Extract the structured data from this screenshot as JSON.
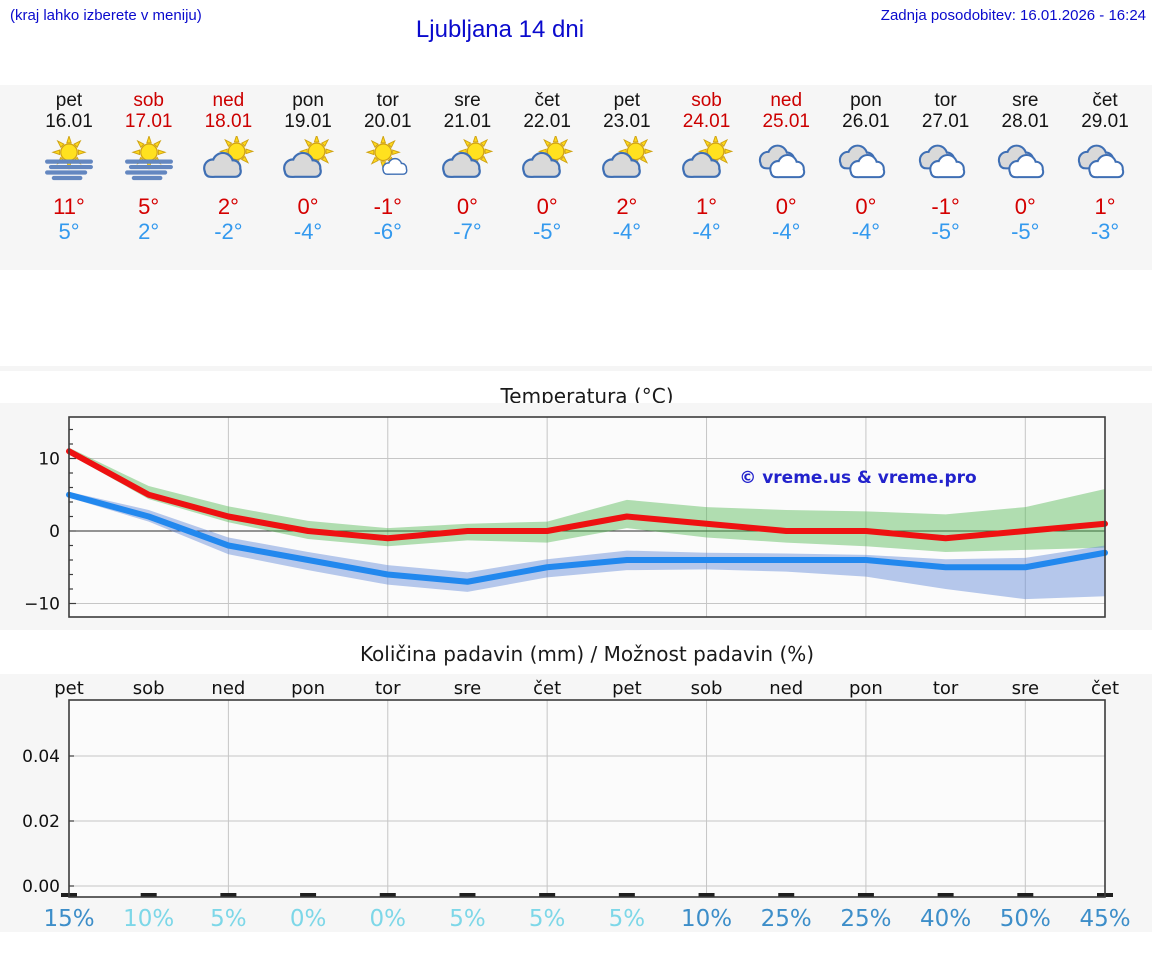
{
  "page": {
    "hint": "(kraj lahko izberete v meniju)",
    "title": "Ljubljana 14 dni",
    "last_update": "Zadnja posodobitev: 16.01.2026 - 16:24"
  },
  "colors": {
    "link_blue": "#0a0acd",
    "weekend_red": "#cc0000",
    "high_temp_red": "#d40000",
    "low_temp_blue": "#3399ee",
    "max_line_red": "#ee1111",
    "min_line_blue": "#2288ee",
    "max_band_green": "rgba(85,185,85,0.45)",
    "min_band_blue": "rgba(95,135,215,0.45)",
    "prob_high_blue": "#3d8ec9",
    "prob_low_cyan": "#7dd7e8"
  },
  "days": [
    {
      "name": "pet",
      "date": "16.01",
      "weekend": false,
      "icon": "fog",
      "high": "11°",
      "low": "5°",
      "precip_prob": "15%",
      "prob_level": "high"
    },
    {
      "name": "sob",
      "date": "17.01",
      "weekend": true,
      "icon": "fog",
      "high": "5°",
      "low": "2°",
      "precip_prob": "10%",
      "prob_level": "low"
    },
    {
      "name": "ned",
      "date": "18.01",
      "weekend": true,
      "icon": "partly",
      "high": "2°",
      "low": "-2°",
      "precip_prob": "5%",
      "prob_level": "low"
    },
    {
      "name": "pon",
      "date": "19.01",
      "weekend": false,
      "icon": "partly",
      "high": "0°",
      "low": "-4°",
      "precip_prob": "0%",
      "prob_level": "low"
    },
    {
      "name": "tor",
      "date": "20.01",
      "weekend": false,
      "icon": "sun-small-cloud",
      "high": "-1°",
      "low": "-6°",
      "precip_prob": "0%",
      "prob_level": "low"
    },
    {
      "name": "sre",
      "date": "21.01",
      "weekend": false,
      "icon": "partly",
      "high": "0°",
      "low": "-7°",
      "precip_prob": "5%",
      "prob_level": "low"
    },
    {
      "name": "čet",
      "date": "22.01",
      "weekend": false,
      "icon": "partly",
      "high": "0°",
      "low": "-5°",
      "precip_prob": "5%",
      "prob_level": "low"
    },
    {
      "name": "pet",
      "date": "23.01",
      "weekend": false,
      "icon": "partly",
      "high": "2°",
      "low": "-4°",
      "precip_prob": "5%",
      "prob_level": "low"
    },
    {
      "name": "sob",
      "date": "24.01",
      "weekend": true,
      "icon": "partly",
      "high": "1°",
      "low": "-4°",
      "precip_prob": "10%",
      "prob_level": "high"
    },
    {
      "name": "ned",
      "date": "25.01",
      "weekend": true,
      "icon": "cloudy",
      "high": "0°",
      "low": "-4°",
      "precip_prob": "25%",
      "prob_level": "high"
    },
    {
      "name": "pon",
      "date": "26.01",
      "weekend": false,
      "icon": "cloudy",
      "high": "0°",
      "low": "-4°",
      "precip_prob": "25%",
      "prob_level": "high"
    },
    {
      "name": "tor",
      "date": "27.01",
      "weekend": false,
      "icon": "cloudy",
      "high": "-1°",
      "low": "-5°",
      "precip_prob": "40%",
      "prob_level": "high"
    },
    {
      "name": "sre",
      "date": "28.01",
      "weekend": false,
      "icon": "cloudy",
      "high": "0°",
      "low": "-5°",
      "precip_prob": "50%",
      "prob_level": "high"
    },
    {
      "name": "čet",
      "date": "29.01",
      "weekend": false,
      "icon": "cloudy",
      "high": "1°",
      "low": "-3°",
      "precip_prob": "45%",
      "prob_level": "high"
    }
  ],
  "chart_data": [
    {
      "type": "line",
      "title": "Temperatura (°C)",
      "categories": [
        "16.01",
        "17.01",
        "18.01",
        "19.01",
        "20.01",
        "21.01",
        "22.01",
        "23.01",
        "24.01",
        "25.01",
        "26.01",
        "27.01",
        "28.01",
        "29.01"
      ],
      "series": [
        {
          "name": "max temperature",
          "color": "#ee1111",
          "values": [
            11,
            5,
            2,
            0,
            -1,
            0,
            0,
            2,
            1,
            0,
            0,
            -1,
            0,
            1
          ]
        },
        {
          "name": "min temperature",
          "color": "#2288ee",
          "values": [
            5,
            2,
            -2,
            -4,
            -6,
            -7,
            -5,
            -4,
            -4,
            -4,
            -4,
            -5,
            -5,
            -3
          ]
        }
      ],
      "bands": [
        {
          "name": "max temperature range",
          "color": "rgba(85,185,85,0.45)",
          "upper": [
            11.5,
            6.2,
            3.4,
            1.4,
            0.4,
            1.0,
            1.3,
            4.3,
            3.3,
            2.9,
            2.7,
            2.3,
            3.3,
            5.8
          ],
          "lower": [
            10.6,
            4.4,
            1.2,
            -1.1,
            -2.1,
            -1.3,
            -1.6,
            0.4,
            -0.9,
            -1.6,
            -2.1,
            -2.9,
            -2.6,
            -2.3
          ]
        },
        {
          "name": "min temperature range",
          "color": "rgba(95,135,215,0.45)",
          "upper": [
            5.4,
            2.9,
            -0.9,
            -2.9,
            -4.7,
            -5.7,
            -3.9,
            -2.7,
            -3.0,
            -3.1,
            -3.3,
            -3.9,
            -3.7,
            -2.0
          ],
          "lower": [
            4.6,
            1.3,
            -3.2,
            -5.4,
            -7.4,
            -8.4,
            -6.4,
            -5.4,
            -5.3,
            -5.6,
            -6.3,
            -8.0,
            -9.4,
            -9.0
          ]
        }
      ],
      "yticks": [
        {
          "label": "10",
          "value": 10
        },
        {
          "label": "0",
          "value": 0
        },
        {
          "label": "−10",
          "value": -10
        }
      ],
      "ylim": [
        -11.9,
        15.7
      ],
      "grid": true,
      "zero_line": true,
      "watermark": "© vreme.us & vreme.pro"
    },
    {
      "type": "bar",
      "title": "Količina padavin (mm) / Možnost padavin (%)",
      "categories": [
        "pet",
        "sob",
        "ned",
        "pon",
        "tor",
        "sre",
        "čet",
        "pet",
        "sob",
        "ned",
        "pon",
        "tor",
        "sre",
        "čet"
      ],
      "values": [
        0,
        0,
        0,
        0,
        0,
        0,
        0,
        0,
        0,
        0,
        0,
        0,
        0,
        0
      ],
      "probability_labels": [
        "15%",
        "10%",
        "5%",
        "0%",
        "0%",
        "5%",
        "5%",
        "5%",
        "10%",
        "25%",
        "25%",
        "40%",
        "50%",
        "45%"
      ],
      "probability_levels": [
        "high",
        "low",
        "low",
        "low",
        "low",
        "low",
        "low",
        "low",
        "high",
        "high",
        "high",
        "high",
        "high",
        "high"
      ],
      "yticks": [
        {
          "label": "0.04",
          "value": 0.04
        },
        {
          "label": "0.02",
          "value": 0.02
        },
        {
          "label": "0.00",
          "value": 0.0
        }
      ],
      "ylim": [
        -0.0034,
        0.0572
      ],
      "xlabel": "",
      "ylabel": "",
      "grid": true
    }
  ]
}
